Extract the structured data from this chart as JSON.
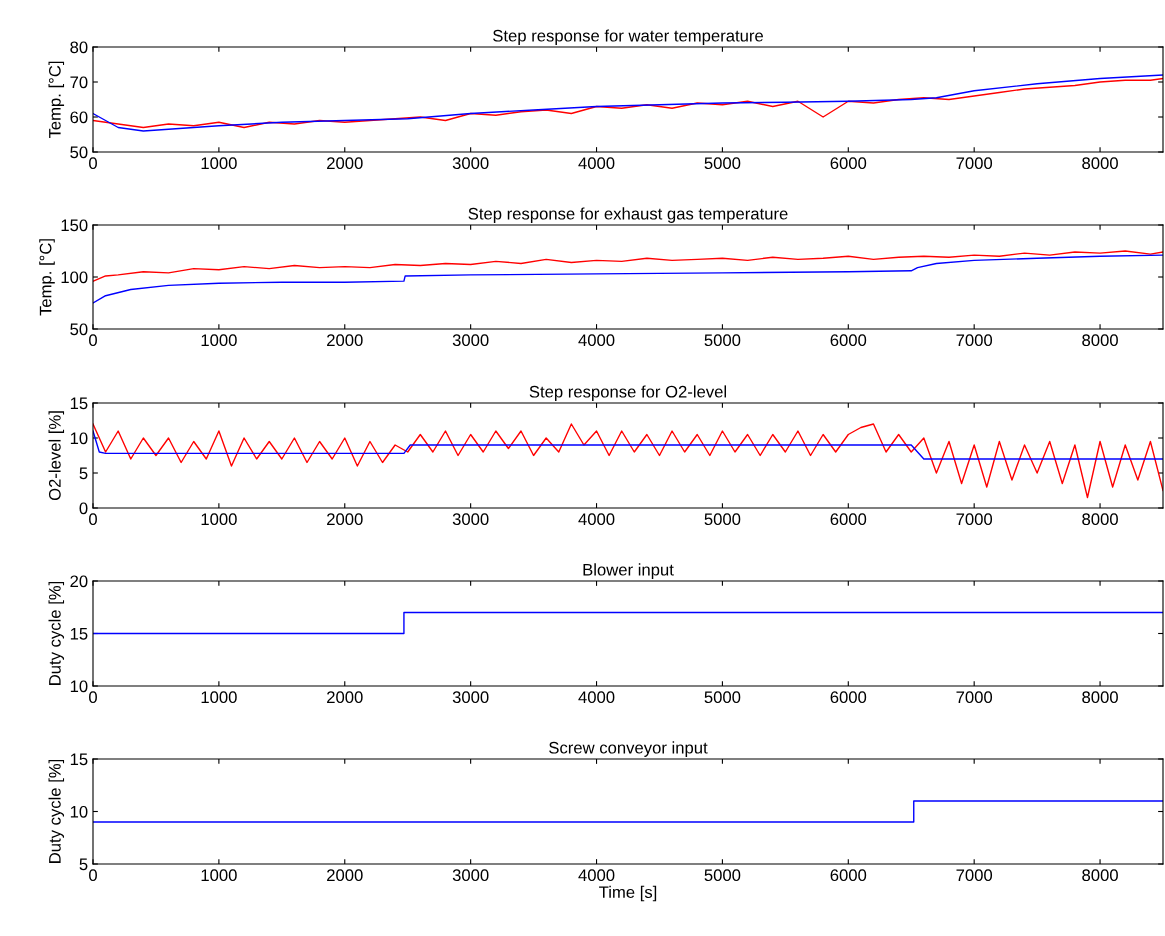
{
  "chart_data": [
    {
      "type": "line",
      "title": "Step response for water temperature",
      "ylabel": "Temp. [°C]",
      "xlim": [
        0,
        8500
      ],
      "xticks": [
        0,
        1000,
        2000,
        3000,
        4000,
        5000,
        6000,
        7000,
        8000
      ],
      "ylim": [
        50,
        80
      ],
      "yticks": [
        50,
        60,
        70,
        80
      ],
      "grid": false,
      "series": [
        {
          "color": "#ff0000",
          "x": [
            0,
            200,
            400,
            600,
            800,
            1000,
            1200,
            1400,
            1600,
            1800,
            2000,
            2200,
            2400,
            2600,
            2800,
            3000,
            3200,
            3400,
            3600,
            3800,
            4000,
            4200,
            4400,
            4600,
            4800,
            5000,
            5200,
            5400,
            5600,
            5800,
            6000,
            6200,
            6400,
            6600,
            6800,
            7000,
            7200,
            7400,
            7600,
            7800,
            8000,
            8200,
            8400,
            8500
          ],
          "values": [
            59,
            58,
            57,
            58,
            57.5,
            58.5,
            57,
            58.5,
            58,
            59,
            58.5,
            59,
            59.5,
            60,
            59,
            61,
            60.5,
            61.5,
            62,
            61,
            63,
            62.5,
            63.5,
            62.5,
            64,
            63.5,
            64.5,
            63,
            64.5,
            60,
            64.5,
            64,
            65,
            65.5,
            65,
            66,
            67,
            68,
            68.5,
            69,
            70,
            70.5,
            70.5,
            71
          ]
        },
        {
          "color": "#0000ff",
          "x": [
            0,
            100,
            200,
            400,
            600,
            800,
            1000,
            1500,
            2000,
            2500,
            3000,
            3500,
            4000,
            4500,
            5000,
            5500,
            6000,
            6500,
            6700,
            7000,
            7500,
            8000,
            8500
          ],
          "values": [
            61,
            59,
            57,
            56,
            56.5,
            57,
            57.5,
            58.5,
            59,
            59.5,
            61,
            62,
            63,
            63.5,
            64,
            64.2,
            64.5,
            65,
            65.5,
            67.5,
            69.5,
            71,
            72
          ]
        }
      ]
    },
    {
      "type": "line",
      "title": "Step response for exhaust gas temperature",
      "ylabel": "Temp. [°C]",
      "xlim": [
        0,
        8500
      ],
      "xticks": [
        0,
        1000,
        2000,
        3000,
        4000,
        5000,
        6000,
        7000,
        8000
      ],
      "ylim": [
        50,
        150
      ],
      "yticks": [
        50,
        100,
        150
      ],
      "grid": false,
      "series": [
        {
          "color": "#ff0000",
          "x": [
            0,
            100,
            200,
            400,
            600,
            800,
            1000,
            1200,
            1400,
            1600,
            1800,
            2000,
            2200,
            2400,
            2600,
            2800,
            3000,
            3200,
            3400,
            3600,
            3800,
            4000,
            4200,
            4400,
            4600,
            4800,
            5000,
            5200,
            5400,
            5600,
            5800,
            6000,
            6200,
            6400,
            6600,
            6800,
            7000,
            7200,
            7400,
            7600,
            7800,
            8000,
            8200,
            8400,
            8500
          ],
          "values": [
            96,
            101,
            102,
            105,
            104,
            108,
            107,
            110,
            108,
            111,
            109,
            110,
            109,
            112,
            111,
            113,
            112,
            115,
            113,
            117,
            114,
            116,
            115,
            118,
            116,
            117,
            118,
            116,
            119,
            117,
            118,
            120,
            117,
            119,
            120,
            119,
            121,
            120,
            123,
            121,
            124,
            123,
            125,
            122,
            124
          ]
        },
        {
          "color": "#0000ff",
          "x": [
            0,
            100,
            300,
            600,
            1000,
            1500,
            2000,
            2470,
            2480,
            3000,
            4000,
            5000,
            6000,
            6500,
            6550,
            6700,
            7000,
            7500,
            8000,
            8500
          ],
          "values": [
            75,
            82,
            88,
            92,
            94,
            95,
            95,
            96,
            101,
            102,
            103,
            104,
            105,
            106,
            109,
            113,
            116,
            118,
            120,
            121
          ]
        }
      ]
    },
    {
      "type": "line",
      "title": "Step response for O2-level",
      "ylabel": "O2-level [%]",
      "xlim": [
        0,
        8500
      ],
      "xticks": [
        0,
        1000,
        2000,
        3000,
        4000,
        5000,
        6000,
        7000,
        8000
      ],
      "ylim": [
        0,
        15
      ],
      "yticks": [
        0,
        5,
        10,
        15
      ],
      "grid": false,
      "series": [
        {
          "color": "#ff0000",
          "x": [
            0,
            100,
            200,
            300,
            400,
            500,
            600,
            700,
            800,
            900,
            1000,
            1100,
            1200,
            1300,
            1400,
            1500,
            1600,
            1700,
            1800,
            1900,
            2000,
            2100,
            2200,
            2300,
            2400,
            2500,
            2600,
            2700,
            2800,
            2900,
            3000,
            3100,
            3200,
            3300,
            3400,
            3500,
            3600,
            3700,
            3800,
            3900,
            4000,
            4100,
            4200,
            4300,
            4400,
            4500,
            4600,
            4700,
            4800,
            4900,
            5000,
            5100,
            5200,
            5300,
            5400,
            5500,
            5600,
            5700,
            5800,
            5900,
            6000,
            6100,
            6200,
            6300,
            6400,
            6500,
            6600,
            6700,
            6800,
            6900,
            7000,
            7100,
            7200,
            7300,
            7400,
            7500,
            7600,
            7700,
            7800,
            7900,
            8000,
            8100,
            8200,
            8300,
            8400,
            8500
          ],
          "values": [
            12,
            8,
            11,
            7,
            10,
            7.5,
            10,
            6.5,
            9.5,
            7,
            11,
            6,
            10,
            7,
            9.5,
            7,
            10,
            6.5,
            9.5,
            7,
            10,
            6,
            9.5,
            6.5,
            9,
            8,
            10.5,
            8,
            11,
            7.5,
            10.5,
            8,
            11,
            8.5,
            11,
            7.5,
            10,
            8,
            12,
            9,
            11,
            7.5,
            11,
            8,
            10.5,
            7.5,
            11,
            8,
            10.5,
            7.5,
            11,
            8,
            10.5,
            7.5,
            10.5,
            8,
            11,
            7.5,
            10.5,
            8,
            10.5,
            11.5,
            12,
            8,
            10.5,
            8,
            10,
            5,
            9.5,
            3.5,
            9,
            3,
            9.5,
            4,
            9,
            5,
            9.5,
            3.5,
            9,
            1.5,
            9.5,
            3,
            9,
            4,
            9.5,
            2.5
          ]
        },
        {
          "color": "#0000ff",
          "x": [
            0,
            50,
            100,
            2470,
            2520,
            6500,
            6600,
            8500
          ],
          "values": [
            11,
            8,
            7.8,
            7.8,
            9,
            9,
            7,
            7
          ]
        }
      ]
    },
    {
      "type": "line",
      "title": "Blower input",
      "ylabel": "Duty cycle [%]",
      "xlim": [
        0,
        8500
      ],
      "xticks": [
        0,
        1000,
        2000,
        3000,
        4000,
        5000,
        6000,
        7000,
        8000
      ],
      "ylim": [
        10,
        20
      ],
      "yticks": [
        10,
        15,
        20
      ],
      "grid": false,
      "series": [
        {
          "color": "#0000ff",
          "x": [
            0,
            2470,
            2470,
            8500
          ],
          "values": [
            15,
            15,
            17,
            17
          ]
        }
      ]
    },
    {
      "type": "line",
      "title": "Screw conveyor input",
      "ylabel": "Duty cycle [%]",
      "xlabel": "Time [s]",
      "xlim": [
        0,
        8500
      ],
      "xticks": [
        0,
        1000,
        2000,
        3000,
        4000,
        5000,
        6000,
        7000,
        8000
      ],
      "ylim": [
        5,
        15
      ],
      "yticks": [
        5,
        10,
        15
      ],
      "grid": false,
      "series": [
        {
          "color": "#0000ff",
          "x": [
            0,
            6520,
            6520,
            8500
          ],
          "values": [
            9,
            9,
            11,
            11
          ]
        }
      ]
    }
  ]
}
